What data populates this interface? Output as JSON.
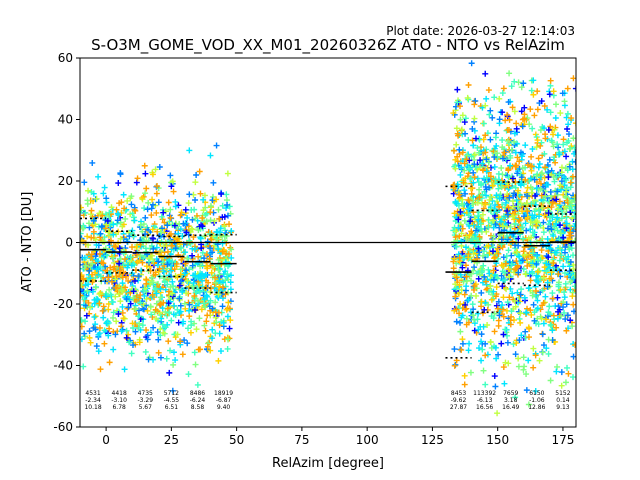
{
  "chart_data": {
    "type": "scatter",
    "plot_date": "Plot date: 2026-03-27 12:14:03",
    "title": "S-O3M_GOME_VOD_XX_M01_20260326Z ATO - NTO vs RelAzim",
    "xlabel": "RelAzim [degree]",
    "ylabel": "ATO - NTO [DU]",
    "xlim": [
      -10,
      180
    ],
    "ylim": [
      -60,
      60
    ],
    "xticks": [
      0,
      25,
      50,
      75,
      100,
      125,
      150,
      175
    ],
    "yticks": [
      -60,
      -40,
      -20,
      0,
      20,
      40,
      60
    ],
    "zero_line": 0,
    "marker": "+",
    "colormap": [
      "#0000ff",
      "#0080ff",
      "#00e5ff",
      "#40ffc0",
      "#80ff80",
      "#c0ff40",
      "#ffd000",
      "#ffa000"
    ],
    "bins": [
      {
        "x_from": -10,
        "x_to": 0,
        "count": "4531",
        "mean": "-2.34",
        "std": "10.18",
        "mean_val": -2.34,
        "std_val": 10.18
      },
      {
        "x_from": 0,
        "x_to": 10,
        "count": "4418",
        "mean": "-3.10",
        "std": "6.78",
        "mean_val": -3.1,
        "std_val": 6.78
      },
      {
        "x_from": 10,
        "x_to": 20,
        "count": "4735",
        "mean": "-3.29",
        "std": "5.67",
        "mean_val": -3.29,
        "std_val": 5.67
      },
      {
        "x_from": 20,
        "x_to": 30,
        "count": "5712",
        "mean": "-4.55",
        "std": "6.51",
        "mean_val": -4.55,
        "std_val": 6.51
      },
      {
        "x_from": 30,
        "x_to": 40,
        "count": "8486",
        "mean": "-6.24",
        "std": "8.58",
        "mean_val": -6.24,
        "std_val": 8.58
      },
      {
        "x_from": 40,
        "x_to": 50,
        "count": "18919",
        "mean": "-6.87",
        "std": "9.40",
        "mean_val": -6.87,
        "std_val": 9.4
      },
      {
        "x_from": 130,
        "x_to": 140,
        "count": "8453",
        "mean": "-9.62",
        "std": "27.87",
        "mean_val": -9.62,
        "std_val": 27.87
      },
      {
        "x_from": 140,
        "x_to": 150,
        "count": "113392",
        "mean": "-6.13",
        "std": "16.56",
        "mean_val": -6.13,
        "std_val": 16.56
      },
      {
        "x_from": 150,
        "x_to": 160,
        "count": "7659",
        "mean": "3.18",
        "std": "16.49",
        "mean_val": 3.18,
        "std_val": 16.49
      },
      {
        "x_from": 160,
        "x_to": 170,
        "count": "6150",
        "mean": "-1.06",
        "std": "12.86",
        "mean_val": -1.06,
        "std_val": 12.86
      },
      {
        "x_from": 170,
        "x_to": 180,
        "count": "5152",
        "mean": "0.14",
        "std": "9.13",
        "mean_val": 0.14,
        "std_val": 9.13
      }
    ],
    "scatter_clusters": [
      {
        "x_from": -10,
        "x_to": 48,
        "y_center": -8,
        "y_spread": 22,
        "points": 1400
      },
      {
        "x_from": 133,
        "x_to": 180,
        "y_center": 5,
        "y_spread": 35,
        "points": 1800
      }
    ]
  }
}
